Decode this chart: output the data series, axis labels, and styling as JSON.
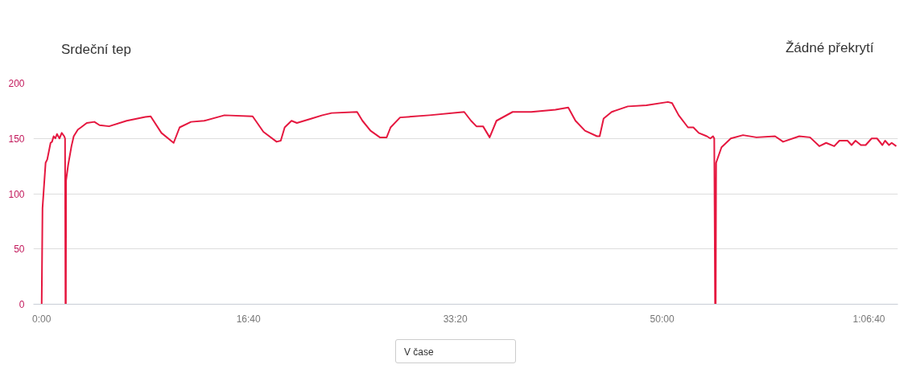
{
  "chart_data": {
    "type": "line",
    "legend": "top left",
    "grid": "y",
    "marker": "none",
    "line_style": "solid",
    "xlim": [
      -40,
      4140
    ],
    "ylim": [
      0,
      200
    ],
    "xticks": [
      {
        "value": 0,
        "label": "0:00"
      },
      {
        "value": 1000,
        "label": "16:40"
      },
      {
        "value": 2000,
        "label": "33:20"
      },
      {
        "value": 3000,
        "label": "50:00"
      },
      {
        "value": 4000,
        "label": "1:06:40"
      }
    ],
    "yticks": [
      0,
      50,
      100,
      150,
      200
    ],
    "annotations": [
      "Žádné překrytí",
      "V čase"
    ],
    "series": [
      {
        "name": "Srdeční tep",
        "color": "#e5173f",
        "x": [
          0,
          4,
          19,
          27,
          43,
          50,
          58,
          66,
          74,
          86,
          97,
          109,
          113,
          115,
          117,
          118,
          128,
          144,
          155,
          175,
          190,
          218,
          255,
          280,
          326,
          411,
          501,
          527,
          579,
          638,
          667,
          722,
          786,
          884,
          1020,
          1072,
          1136,
          1156,
          1175,
          1208,
          1234,
          1305,
          1357,
          1402,
          1525,
          1551,
          1590,
          1635,
          1668,
          1687,
          1733,
          1875,
          2043,
          2076,
          2102,
          2134,
          2166,
          2199,
          2277,
          2367,
          2484,
          2546,
          2581,
          2627,
          2685,
          2698,
          2717,
          2756,
          2834,
          2924,
          3028,
          3048,
          3080,
          3125,
          3151,
          3177,
          3216,
          3233,
          3246,
          3252,
          3256,
          3259,
          3261,
          3287,
          3332,
          3391,
          3456,
          3546,
          3585,
          3663,
          3715,
          3760,
          3793,
          3832,
          3857,
          3896,
          3916,
          3935,
          3961,
          3984,
          4013,
          4039,
          4065,
          4078,
          4097,
          4110,
          4132
        ],
        "values": [
          0,
          87,
          128,
          131,
          146,
          147,
          152,
          150,
          154,
          150,
          155,
          152,
          150,
          0,
          0,
          112,
          126,
          143,
          152,
          158,
          160,
          164,
          165,
          162,
          161,
          166,
          169.5,
          170,
          155,
          146,
          160,
          165,
          166,
          171,
          170,
          156,
          147,
          148,
          160,
          166,
          164,
          168,
          171,
          173,
          174,
          166,
          157,
          151,
          151,
          160,
          169,
          171,
          174,
          166,
          161,
          161,
          151,
          166,
          174,
          174,
          176,
          178,
          166,
          157,
          152,
          152,
          168,
          174,
          179,
          180,
          183,
          182,
          171,
          160,
          160,
          155,
          152,
          150,
          152,
          150,
          0,
          0,
          128,
          142,
          150,
          153,
          151,
          152,
          147,
          152,
          151,
          143,
          146,
          143,
          148,
          148,
          144,
          148,
          144,
          144,
          150,
          150,
          144,
          148,
          144,
          146,
          143
        ]
      }
    ]
  }
}
